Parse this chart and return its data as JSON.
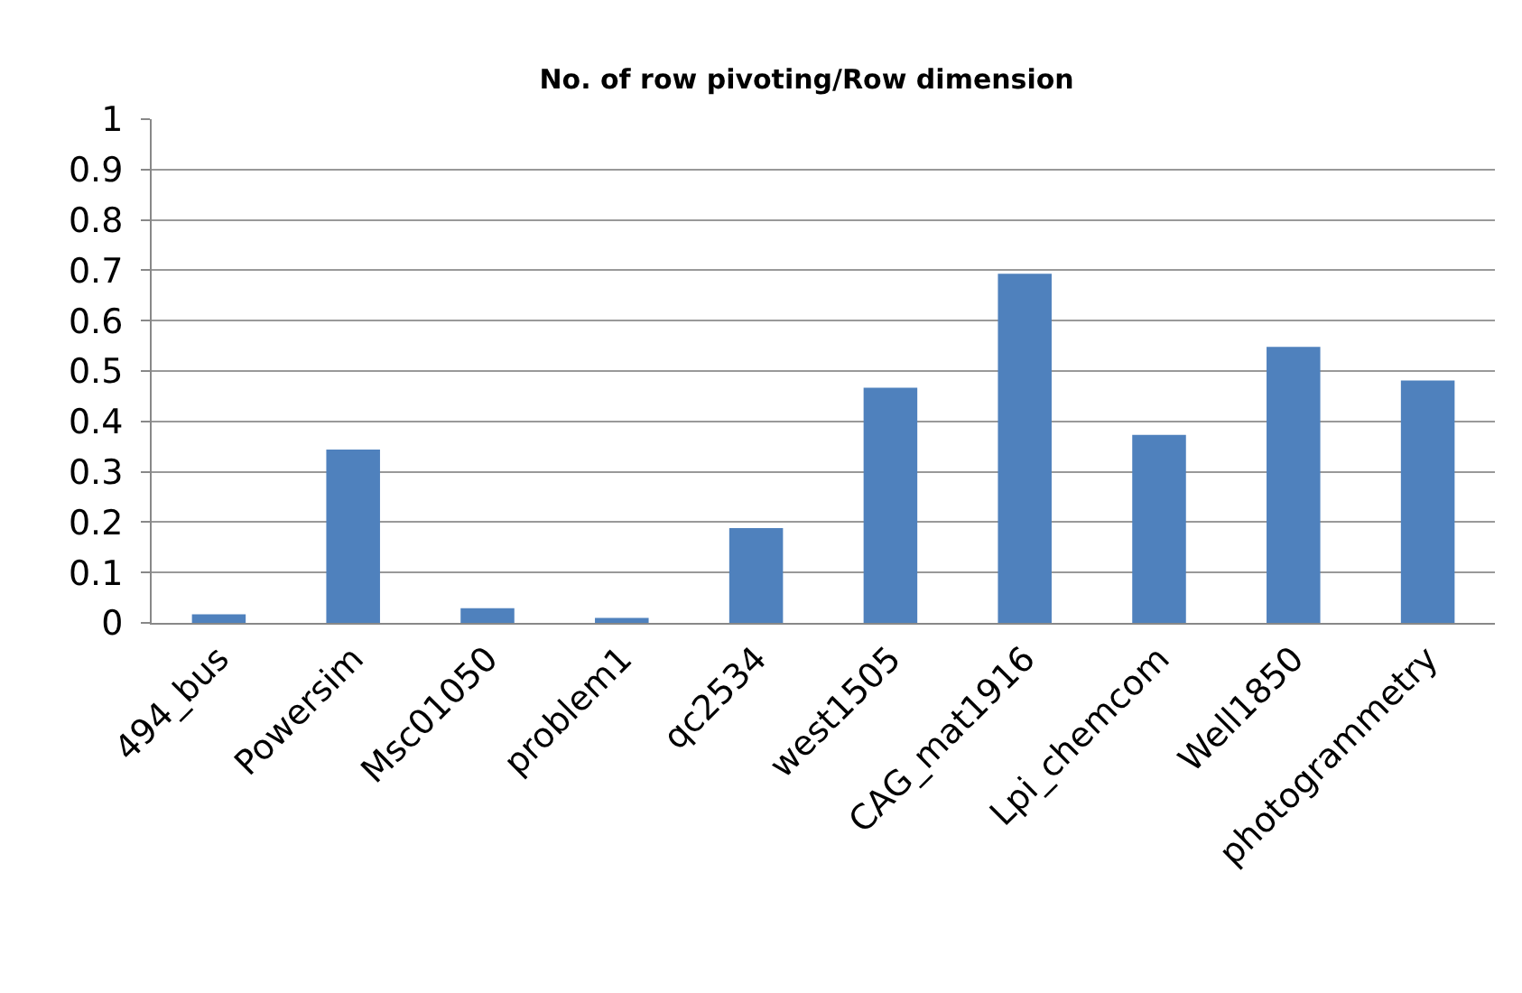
{
  "chart_data": {
    "type": "bar",
    "title": "No. of row pivoting/Row dimension",
    "categories": [
      "494_bus",
      "Powersim",
      "Msc01050",
      "problem1",
      "qc2534",
      "west1505",
      "CAG_mat1916",
      "Lpi_chemcom",
      "Well1850",
      "photogrammetry"
    ],
    "values": [
      0.017,
      0.344,
      0.029,
      0.01,
      0.188,
      0.467,
      0.693,
      0.373,
      0.548,
      0.481
    ],
    "color": "#4f81bd",
    "ylim": [
      0,
      1
    ],
    "yticks": [
      0,
      0.1,
      0.2,
      0.3,
      0.4,
      0.5,
      0.6,
      0.7,
      0.8,
      0.9,
      1
    ],
    "grid": "y"
  }
}
